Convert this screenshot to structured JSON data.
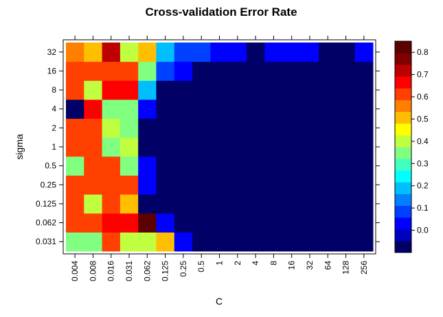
{
  "chart_data": {
    "type": "heatmap",
    "title": "Cross-validation Error Rate",
    "xlabel": "C",
    "ylabel": "sigma",
    "x_categories": [
      "0.004",
      "0.008",
      "0.016",
      "0.031",
      "0.062",
      "0.125",
      "0.25",
      "0.5",
      "1",
      "2",
      "4",
      "8",
      "16",
      "32",
      "64",
      "128",
      "256"
    ],
    "y_categories": [
      "0.031",
      "0.062",
      "0.125",
      "0.25",
      "0.5",
      "1",
      "2",
      "4",
      "8",
      "16",
      "32"
    ],
    "values": [
      [
        0.35,
        0.35,
        0.6,
        0.4,
        0.4,
        0.5,
        0.05,
        -0.05,
        -0.05,
        -0.05,
        -0.05,
        -0.05,
        -0.05,
        -0.05,
        -0.05,
        -0.05,
        -0.05
      ],
      [
        0.6,
        0.6,
        0.65,
        0.65,
        0.8,
        0.05,
        -0.05,
        -0.05,
        -0.05,
        -0.05,
        -0.05,
        -0.05,
        -0.05,
        -0.05,
        -0.05,
        -0.05,
        -0.05
      ],
      [
        0.6,
        0.4,
        0.6,
        0.5,
        -0.05,
        -0.05,
        -0.05,
        -0.05,
        -0.05,
        -0.05,
        -0.05,
        -0.05,
        -0.05,
        -0.05,
        -0.05,
        -0.05,
        -0.05
      ],
      [
        0.6,
        0.6,
        0.6,
        0.6,
        0.05,
        -0.05,
        -0.05,
        -0.05,
        -0.05,
        -0.05,
        -0.05,
        -0.05,
        -0.05,
        -0.05,
        -0.05,
        -0.05,
        -0.05
      ],
      [
        0.35,
        0.6,
        0.6,
        0.35,
        0.05,
        -0.05,
        -0.05,
        -0.05,
        -0.05,
        -0.05,
        -0.05,
        -0.05,
        -0.05,
        -0.05,
        -0.05,
        -0.05,
        -0.05
      ],
      [
        0.6,
        0.6,
        0.35,
        0.4,
        -0.05,
        -0.05,
        -0.05,
        -0.05,
        -0.05,
        -0.05,
        -0.05,
        -0.05,
        -0.05,
        -0.05,
        -0.05,
        -0.05,
        -0.05
      ],
      [
        0.6,
        0.6,
        0.4,
        0.35,
        -0.05,
        -0.05,
        -0.05,
        -0.05,
        -0.05,
        -0.05,
        -0.05,
        -0.05,
        -0.05,
        -0.05,
        -0.05,
        -0.05,
        -0.05
      ],
      [
        -0.05,
        0.65,
        0.35,
        0.35,
        0.05,
        -0.05,
        -0.05,
        -0.05,
        -0.05,
        -0.05,
        -0.05,
        -0.05,
        -0.05,
        -0.05,
        -0.05,
        -0.05,
        -0.05
      ],
      [
        0.6,
        0.4,
        0.65,
        0.65,
        0.2,
        -0.05,
        -0.05,
        -0.05,
        -0.05,
        -0.05,
        -0.05,
        -0.05,
        -0.05,
        -0.05,
        -0.05,
        -0.05,
        -0.05
      ],
      [
        0.6,
        0.6,
        0.6,
        0.6,
        0.35,
        0.1,
        0.05,
        -0.05,
        -0.05,
        -0.05,
        -0.05,
        -0.05,
        -0.05,
        -0.05,
        -0.05,
        -0.05,
        -0.05
      ],
      [
        0.55,
        0.5,
        0.7,
        0.4,
        0.5,
        0.2,
        0.1,
        0.1,
        0.05,
        0.05,
        -0.05,
        0.05,
        0.05,
        0.05,
        -0.05,
        -0.05,
        0.05
      ]
    ],
    "colorbar": {
      "tick_labels": [
        "0.0",
        "0.1",
        "0.2",
        "0.3",
        "0.4",
        "0.5",
        "0.6",
        "0.7",
        "0.8"
      ],
      "tick_values": [
        0.0,
        0.1,
        0.2,
        0.3,
        0.4,
        0.5,
        0.6,
        0.7,
        0.8
      ],
      "range": [
        -0.1,
        0.85
      ]
    },
    "palette": [
      "#000066",
      "#0000BF",
      "#0000FF",
      "#0040FF",
      "#0080FF",
      "#00BFFF",
      "#00FFFF",
      "#40FFBF",
      "#80FF80",
      "#BFFF40",
      "#FFFF00",
      "#FFBF00",
      "#FF8000",
      "#FF4000",
      "#FF0000",
      "#BF0000",
      "#800000",
      "#5C0000"
    ],
    "legend_position": "right",
    "grid": false
  }
}
